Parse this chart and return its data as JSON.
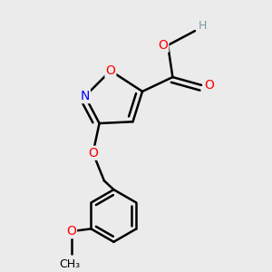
{
  "background_color": "#ebebeb",
  "bond_color": "#000000",
  "bond_width": 1.8,
  "atom_colors": {
    "O": "#ff0000",
    "N": "#0000ff",
    "H": "#7a9aa0",
    "C": "#000000"
  },
  "font_size_atom": 10
}
